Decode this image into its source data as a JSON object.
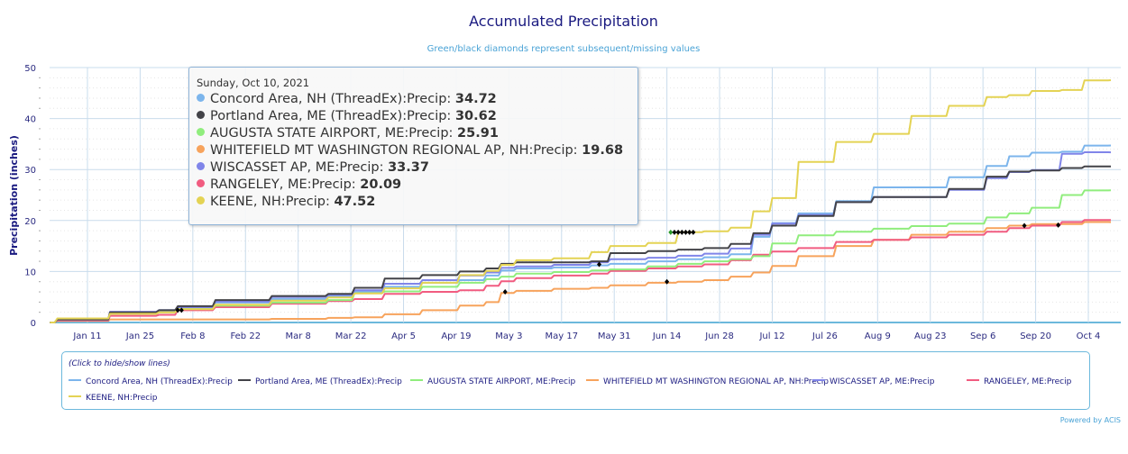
{
  "chart_data": {
    "type": "line",
    "title": "Accumulated Precipitation",
    "subtitle": "Green/black diamonds represent subsequent/missing values",
    "xlabel": "",
    "ylabel": "Precipitation (inches)",
    "ylim": [
      0,
      50
    ],
    "yticks": [
      0,
      10,
      20,
      30,
      40,
      50
    ],
    "xlim_day_of_year": [
      1,
      283
    ],
    "xticks": [
      {
        "label": "Jan 11",
        "day": 11
      },
      {
        "label": "Jan 25",
        "day": 25
      },
      {
        "label": "Feb 8",
        "day": 39
      },
      {
        "label": "Feb 22",
        "day": 53
      },
      {
        "label": "Mar 8",
        "day": 67
      },
      {
        "label": "Mar 22",
        "day": 81
      },
      {
        "label": "Apr 5",
        "day": 95
      },
      {
        "label": "Apr 19",
        "day": 109
      },
      {
        "label": "May 3",
        "day": 123
      },
      {
        "label": "May 17",
        "day": 137
      },
      {
        "label": "May 31",
        "day": 151
      },
      {
        "label": "Jun 14",
        "day": 165
      },
      {
        "label": "Jun 28",
        "day": 179
      },
      {
        "label": "Jul 12",
        "day": 193
      },
      {
        "label": "Jul 26",
        "day": 207
      },
      {
        "label": "Aug 9",
        "day": 221
      },
      {
        "label": "Aug 23",
        "day": 235
      },
      {
        "label": "Sep 6",
        "day": 249
      },
      {
        "label": "Sep 20",
        "day": 263
      },
      {
        "label": "Oct 4",
        "day": 277
      }
    ],
    "grid": true,
    "legend_position": "bottom",
    "x_days": [
      1,
      3,
      16,
      17,
      30,
      35,
      45,
      60,
      75,
      82,
      90,
      100,
      110,
      117,
      121,
      125,
      135,
      145,
      150,
      160,
      168,
      175,
      182,
      188,
      193,
      200,
      210,
      220,
      230,
      240,
      250,
      256,
      262,
      270,
      276,
      283
    ],
    "series": [
      {
        "name": "Concord Area, NH (ThreadEx):Precip",
        "color": "#7cb5ec",
        "values": [
          0,
          0.6,
          0.6,
          2.0,
          2.4,
          3.0,
          3.9,
          4.6,
          5.2,
          6.1,
          7.0,
          7.8,
          8.3,
          9.2,
          10.2,
          10.6,
          10.8,
          11.2,
          11.5,
          12.0,
          12.4,
          12.8,
          13.4,
          16.8,
          19.5,
          21.4,
          23.8,
          26.5,
          26.5,
          28.5,
          30.7,
          32.6,
          33.3,
          33.5,
          34.7,
          34.72
        ]
      },
      {
        "name": "Portland Area, ME (ThreadEx):Precip",
        "color": "#434348",
        "values": [
          0,
          0.6,
          0.6,
          2.0,
          2.4,
          3.2,
          4.4,
          5.2,
          5.6,
          6.8,
          8.6,
          9.3,
          10.0,
          10.6,
          11.5,
          11.8,
          11.8,
          12.0,
          13.6,
          14.0,
          14.3,
          14.6,
          15.4,
          17.5,
          19.0,
          20.9,
          23.6,
          24.6,
          24.6,
          26.2,
          28.6,
          29.6,
          29.8,
          30.3,
          30.6,
          30.62
        ]
      },
      {
        "name": "AUGUSTA STATE AIRPORT, ME:Precip",
        "color": "#90ed7d",
        "values": [
          0,
          0.6,
          0.6,
          1.7,
          2.0,
          2.8,
          3.3,
          3.9,
          4.4,
          5.8,
          6.1,
          7.0,
          7.8,
          8.5,
          9.0,
          9.6,
          9.9,
          10.2,
          10.4,
          11.0,
          11.5,
          12.0,
          12.4,
          13.0,
          15.5,
          17.1,
          17.8,
          18.4,
          18.9,
          19.4,
          20.6,
          21.4,
          22.5,
          25.0,
          25.9,
          25.91
        ]
      },
      {
        "name": "WHITEFIELD MT WASHINGTON REGIONAL AP, NH:Precip",
        "color": "#f7a35c",
        "values": [
          0,
          0.3,
          0.3,
          0.6,
          0.6,
          0.6,
          0.6,
          0.7,
          0.9,
          1.0,
          1.6,
          2.4,
          3.3,
          4.0,
          5.8,
          6.2,
          6.6,
          6.8,
          7.3,
          7.8,
          8.0,
          8.3,
          9.0,
          9.8,
          11.1,
          13.0,
          15.0,
          16.2,
          17.2,
          17.8,
          18.5,
          19.0,
          19.3,
          19.3,
          19.7,
          19.68
        ]
      },
      {
        "name": "WISCASSET AP, ME:Precip",
        "color": "#8085e9",
        "values": [
          0,
          0.6,
          0.6,
          2.1,
          2.4,
          3.0,
          4.1,
          5.0,
          5.4,
          6.3,
          7.6,
          8.3,
          9.2,
          9.8,
          10.7,
          11.0,
          11.3,
          11.8,
          12.4,
          12.7,
          13.1,
          13.5,
          14.5,
          17.2,
          19.4,
          21.1,
          23.6,
          24.6,
          24.6,
          26.0,
          28.3,
          29.5,
          29.9,
          33.1,
          33.4,
          33.37
        ]
      },
      {
        "name": "RANGELEY, ME:Precip",
        "color": "#f15c80",
        "values": [
          0,
          0.4,
          0.4,
          1.3,
          1.5,
          2.4,
          3.0,
          3.7,
          4.2,
          4.6,
          5.6,
          6.0,
          6.3,
          7.2,
          8.1,
          8.7,
          9.2,
          9.6,
          10.1,
          10.6,
          11.0,
          11.4,
          12.2,
          13.3,
          13.9,
          14.6,
          15.8,
          16.2,
          16.7,
          17.2,
          17.8,
          18.5,
          19.0,
          19.7,
          20.1,
          20.09
        ]
      },
      {
        "name": "KEENE, NH:Precip",
        "color": "#e4d354",
        "values": [
          0,
          0.8,
          0.8,
          1.7,
          2.0,
          2.6,
          3.5,
          4.3,
          4.9,
          5.7,
          6.7,
          7.8,
          9.3,
          10.1,
          11.3,
          12.2,
          12.6,
          13.8,
          15.0,
          15.6,
          17.7,
          17.9,
          18.6,
          21.8,
          24.4,
          31.5,
          35.4,
          37.0,
          40.5,
          42.5,
          44.2,
          44.6,
          45.4,
          45.6,
          47.5,
          47.52
        ]
      }
    ],
    "missing_markers": [
      {
        "series": "Portland Area, ME (ThreadEx):Precip",
        "day": 35,
        "value": 2.4
      },
      {
        "series": "Portland Area, ME (ThreadEx):Precip",
        "day": 36,
        "value": 2.4
      },
      {
        "series": "WHITEFIELD MT WASHINGTON REGIONAL AP, NH:Precip",
        "day": 122,
        "value": 6.0
      },
      {
        "series": "Portland Area, ME (ThreadEx):Precip",
        "day": 147,
        "value": 11.4
      },
      {
        "series": "WHITEFIELD MT WASHINGTON REGIONAL AP, NH:Precip",
        "day": 165,
        "value": 8.0
      },
      {
        "series": "KEENE, NH:Precip",
        "day": 166,
        "value": 17.7,
        "kind": "subsequent"
      },
      {
        "series": "KEENE, NH:Precip",
        "day": 167,
        "value": 17.7
      },
      {
        "series": "KEENE, NH:Precip",
        "day": 168,
        "value": 17.7
      },
      {
        "series": "KEENE, NH:Precip",
        "day": 169,
        "value": 17.7
      },
      {
        "series": "KEENE, NH:Precip",
        "day": 170,
        "value": 17.7
      },
      {
        "series": "KEENE, NH:Precip",
        "day": 171,
        "value": 17.7
      },
      {
        "series": "KEENE, NH:Precip",
        "day": 172,
        "value": 17.7
      },
      {
        "series": "RANGELEY, ME:Precip",
        "day": 260,
        "value": 19.0
      },
      {
        "series": "WHITEFIELD MT WASHINGTON REGIONAL AP, NH:Precip",
        "day": 269,
        "value": 19.1
      }
    ]
  },
  "tooltip": {
    "date": "Sunday, Oct 10, 2021",
    "rows": [
      {
        "label": "Concord Area, NH (ThreadEx):Precip: ",
        "value": "34.72",
        "color": "#7cb5ec"
      },
      {
        "label": "Portland Area, ME (ThreadEx):Precip: ",
        "value": "30.62",
        "color": "#434348"
      },
      {
        "label": "AUGUSTA STATE AIRPORT, ME:Precip: ",
        "value": "25.91",
        "color": "#90ed7d"
      },
      {
        "label": "WHITEFIELD MT WASHINGTON REGIONAL AP, NH:Precip: ",
        "value": "19.68",
        "color": "#f7a35c"
      },
      {
        "label": "WISCASSET AP, ME:Precip: ",
        "value": "33.37",
        "color": "#8085e9"
      },
      {
        "label": "RANGELEY, ME:Precip: ",
        "value": "20.09",
        "color": "#f15c80"
      },
      {
        "label": "KEENE, NH:Precip: ",
        "value": "47.52",
        "color": "#e4d354"
      }
    ]
  },
  "legend": {
    "hint": "(Click to hide/show lines)",
    "items": [
      {
        "label": "Concord Area, NH (ThreadEx):Precip",
        "color": "#7cb5ec"
      },
      {
        "label": "Portland Area, ME (ThreadEx):Precip",
        "color": "#434348"
      },
      {
        "label": "AUGUSTA STATE AIRPORT, ME:Precip",
        "color": "#90ed7d"
      },
      {
        "label": "WHITEFIELD MT WASHINGTON REGIONAL AP, NH:Precip",
        "color": "#f7a35c"
      },
      {
        "label": "WISCASSET AP, ME:Precip",
        "color": "#8085e9"
      },
      {
        "label": "RANGELEY, ME:Precip",
        "color": "#f15c80"
      },
      {
        "label": "KEENE, NH:Precip",
        "color": "#e4d354"
      }
    ]
  },
  "credits": "Powered by ACIS",
  "colors": {
    "title": "#1a1a80",
    "subtitle": "#4aa3d6",
    "grid": "#c9dcec",
    "axis": "#6cb8dc",
    "missing_marker": "#000000",
    "subsequent_marker": "#2a9a2a"
  }
}
